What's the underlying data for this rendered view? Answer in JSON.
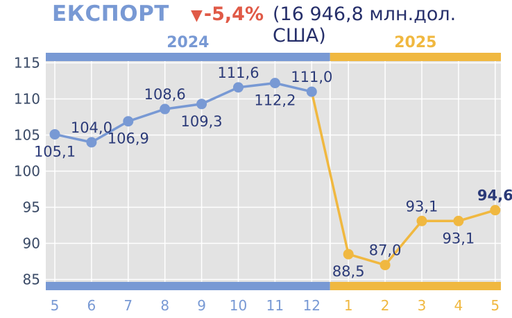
{
  "header": {
    "title": "ЕКСПОРТ",
    "change_arrow": "▼",
    "change": "-5,4%",
    "total": "(16 946,8  млн.дол. США)"
  },
  "colors": {
    "blue": "#7899d4",
    "yellow": "#f0b840",
    "red": "#e05a47",
    "label": "#2b3a78",
    "plot_bg": "#e3e3e3",
    "grid": "#ffffff"
  },
  "chart_data": {
    "type": "line",
    "title": "",
    "xlabel": "",
    "ylabel": "",
    "ylim": [
      84,
      116
    ],
    "yticks": [
      85,
      90,
      95,
      100,
      105,
      110,
      115
    ],
    "grid": true,
    "years": [
      {
        "label": "2024",
        "from": 0,
        "to": 7
      },
      {
        "label": "2025",
        "from": 8,
        "to": 12
      }
    ],
    "categories": [
      "5",
      "6",
      "7",
      "8",
      "9",
      "10",
      "11",
      "12",
      "1",
      "2",
      "3",
      "4",
      "5"
    ],
    "values": [
      105.1,
      104.0,
      106.9,
      108.6,
      109.3,
      111.6,
      112.2,
      111.0,
      88.5,
      87.0,
      93.1,
      93.1,
      94.6
    ],
    "labels": [
      "105,1",
      "104,0",
      "106,9",
      "108,6",
      "109,3",
      "111,6",
      "112,2",
      "111,0",
      "88,5",
      "87,0",
      "93,1",
      "93,1",
      "94,6"
    ],
    "label_pos": [
      "below",
      "above",
      "below",
      "above",
      "below",
      "above",
      "below",
      "above",
      "below",
      "above",
      "above",
      "below",
      "above"
    ],
    "highlight_index": 12,
    "series": [
      {
        "from": 0,
        "to": 7,
        "color": "blue"
      },
      {
        "from": 7,
        "to": 12,
        "color": "yellow"
      }
    ]
  }
}
